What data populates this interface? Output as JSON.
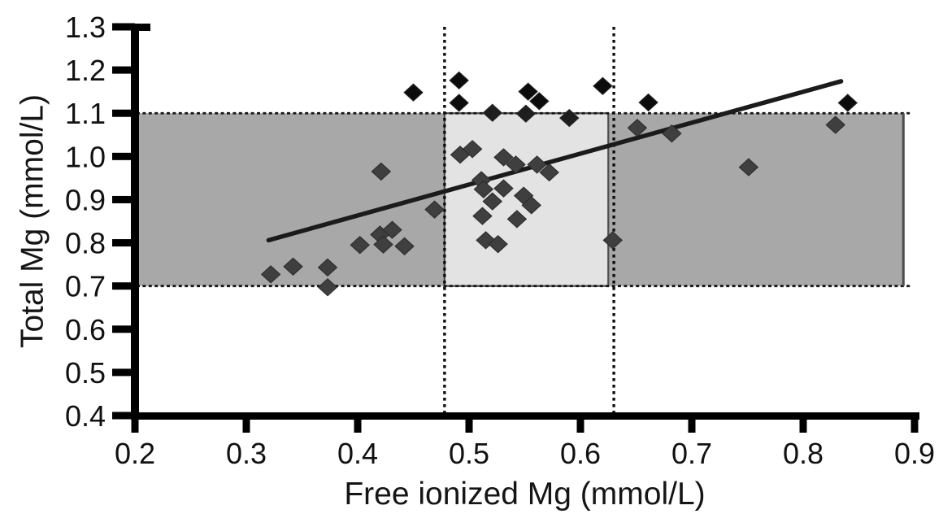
{
  "chart_data": {
    "type": "scatter",
    "title": "",
    "xlabel": "Free ionized Mg (mmol/L)",
    "ylabel": "Total Mg (mmol/L)",
    "x_axis": {
      "min": 0.2,
      "max": 0.9,
      "tick_labels": [
        "0.2",
        "0.3",
        "0.4",
        "0.5",
        "0.6",
        "0.7",
        "0.8",
        "0.9"
      ]
    },
    "y_axis": {
      "min": 0.4,
      "max": 1.3,
      "tick_labels": [
        "0.4",
        "0.5",
        "0.6",
        "0.7",
        "0.8",
        "0.9",
        "1.0",
        "1.1",
        "1.2",
        "1.3"
      ]
    },
    "grid": false,
    "legend": false,
    "marker": "diamond",
    "reference_band": {
      "x_min": 0.2,
      "x_max": 0.89,
      "y_min": 0.7,
      "y_max": 1.1,
      "border_top_bottom": "dashed",
      "border_right": "solid"
    },
    "inner_reference_box": {
      "x_min": 0.478,
      "x_max": 0.625,
      "y_min": 0.7,
      "y_max": 1.1
    },
    "vertical_reference_lines": [
      0.478,
      0.63
    ],
    "trend_line": {
      "x1": 0.32,
      "y1": 0.806,
      "x2": 0.834,
      "y2": 1.174
    },
    "points": [
      [
        0.45,
        1.148
      ],
      [
        0.491,
        1.176
      ],
      [
        0.491,
        1.124
      ],
      [
        0.553,
        1.15
      ],
      [
        0.563,
        1.128
      ],
      [
        0.62,
        1.163
      ],
      [
        0.661,
        1.125
      ],
      [
        0.84,
        1.124
      ],
      [
        0.521,
        1.101
      ],
      [
        0.551,
        1.099
      ],
      [
        0.59,
        1.089
      ],
      [
        0.651,
        1.066
      ],
      [
        0.682,
        1.053
      ],
      [
        0.829,
        1.073
      ],
      [
        0.751,
        0.975
      ],
      [
        0.421,
        0.965
      ],
      [
        0.469,
        0.877
      ],
      [
        0.492,
        1.004
      ],
      [
        0.503,
        1.017
      ],
      [
        0.531,
        0.998
      ],
      [
        0.542,
        0.981
      ],
      [
        0.561,
        0.981
      ],
      [
        0.572,
        0.963
      ],
      [
        0.511,
        0.945
      ],
      [
        0.513,
        0.924
      ],
      [
        0.531,
        0.926
      ],
      [
        0.521,
        0.896
      ],
      [
        0.549,
        0.909
      ],
      [
        0.556,
        0.887
      ],
      [
        0.512,
        0.862
      ],
      [
        0.543,
        0.855
      ],
      [
        0.515,
        0.806
      ],
      [
        0.526,
        0.797
      ],
      [
        0.629,
        0.806
      ],
      [
        0.402,
        0.795
      ],
      [
        0.42,
        0.819
      ],
      [
        0.431,
        0.83
      ],
      [
        0.423,
        0.796
      ],
      [
        0.442,
        0.792
      ],
      [
        0.322,
        0.727
      ],
      [
        0.342,
        0.745
      ],
      [
        0.373,
        0.743
      ],
      [
        0.373,
        0.697
      ]
    ],
    "colors": {
      "band_fill": "#a8a8a8",
      "inner_box_fill": "#e3e3e3",
      "band_border": "#4d4d4d",
      "dashed_line": "#161616",
      "dotted_line": "#0e0e0e",
      "trend_line": "#1b1b1b",
      "point_dark": "#0c0c0c",
      "point_mid": "#1e1e1e",
      "point_gray": "#3f3f3f",
      "point_edge": "#2a2a2a",
      "axis": "#000000",
      "tick_text": "#111111"
    }
  }
}
